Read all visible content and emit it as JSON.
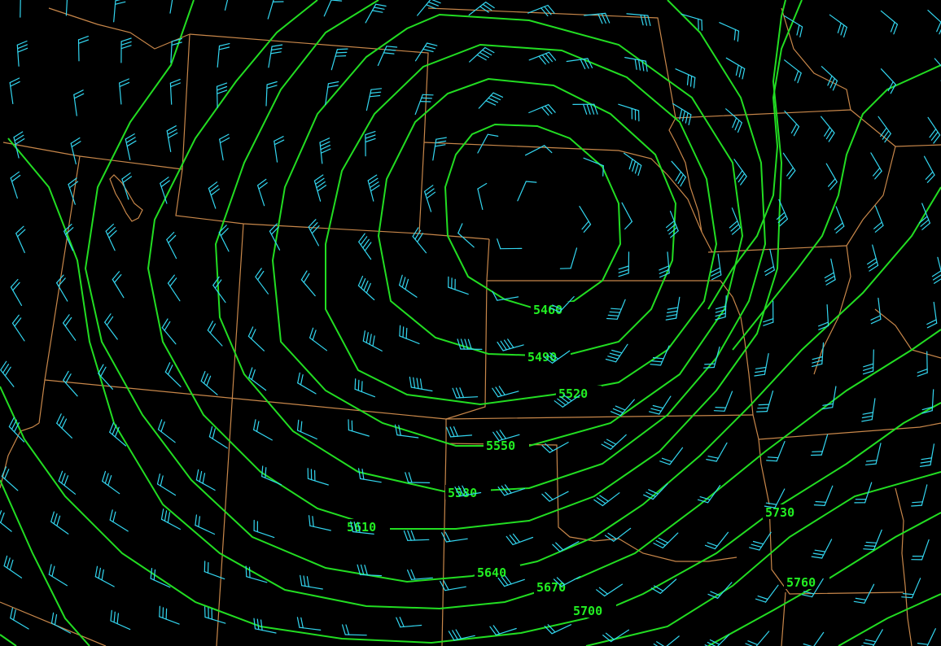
{
  "map": {
    "product": "upper-air geopotential height contours with wind barbs",
    "colors": {
      "background": "#000000",
      "contours": "#22dd22",
      "contour_labels": "#22ee22",
      "wind_barbs": "#33d6f0",
      "boundaries": "#c8874a"
    },
    "contour_labels": [
      "5460",
      "5490",
      "5520",
      "5550",
      "5580",
      "5610",
      "5640",
      "5670",
      "5700",
      "5730",
      "5760"
    ]
  }
}
